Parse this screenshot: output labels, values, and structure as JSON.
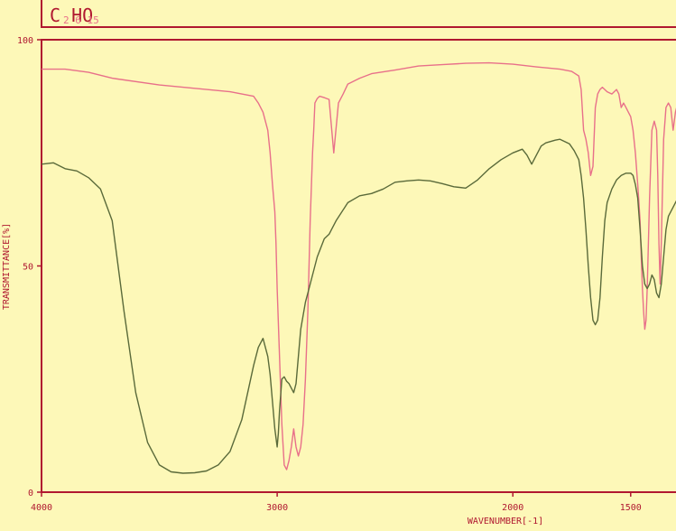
{
  "formula": {
    "main": "C HO",
    "subscripts": "2 6 15"
  },
  "colors": {
    "background": "#fdf8b8",
    "frame": "#b01830",
    "series_top": "#e8708a",
    "series_bottom": "#5a6a3a"
  },
  "chart_data": {
    "type": "line",
    "xlabel": "WAVENUMBER[-1]",
    "ylabel": "TRANSMITTANCE[%]",
    "xlim": [
      4000,
      1300
    ],
    "ylim": [
      0,
      100
    ],
    "x_ticks": [
      4000,
      3000,
      2000,
      1500
    ],
    "x_tick_labels": [
      "4000",
      "3000",
      "2000",
      "1500"
    ],
    "y_ticks": [
      0,
      50,
      100
    ],
    "y_tick_labels": [
      "0",
      "50",
      "100"
    ],
    "grid": false,
    "legend": "none",
    "series": [
      {
        "x": [
          4000,
          3900,
          3800,
          3700,
          3500,
          3300,
          3200,
          3100,
          3080,
          3060,
          3040,
          3030,
          3020,
          3010,
          3005,
          3000,
          2990,
          2980,
          2970,
          2960,
          2950,
          2940,
          2930,
          2920,
          2910,
          2900,
          2890,
          2880,
          2870,
          2860,
          2850,
          2845,
          2840,
          2830,
          2820,
          2800,
          2780,
          2760,
          2740,
          2720,
          2700,
          2650,
          2600,
          2500,
          2400,
          2300,
          2200,
          2100,
          2000,
          1900,
          1800,
          1750,
          1720,
          1710,
          1700,
          1690,
          1680,
          1670,
          1660,
          1650,
          1640,
          1630,
          1620,
          1600,
          1580,
          1560,
          1550,
          1540,
          1530,
          1520,
          1510,
          1500,
          1490,
          1480,
          1470,
          1460,
          1455,
          1450,
          1445,
          1440,
          1435,
          1430,
          1420,
          1410,
          1400,
          1390,
          1385,
          1380,
          1375,
          1370,
          1360,
          1350,
          1340,
          1330,
          1320,
          1310,
          1300
        ],
        "y": [
          93.5,
          93.5,
          92.8,
          91.5,
          90.0,
          89.0,
          88.5,
          87.5,
          86,
          84,
          80,
          75,
          68,
          62,
          55,
          45,
          30,
          15,
          6,
          5,
          7,
          10,
          14,
          10,
          8,
          10,
          15,
          25,
          40,
          60,
          75,
          80,
          86,
          87,
          87.5,
          87.2,
          86.8,
          75,
          86,
          88,
          90.2,
          91.5,
          92.5,
          93.3,
          94.2,
          94.5,
          94.8,
          94.9,
          94.6,
          94.0,
          93.5,
          93,
          92,
          89,
          80,
          78,
          75,
          70,
          72,
          85,
          88,
          89,
          89.5,
          88.5,
          88,
          89,
          88,
          85,
          86,
          85,
          84,
          83,
          80,
          75,
          68,
          60,
          52,
          45,
          40,
          36,
          38,
          45,
          65,
          80,
          82,
          80,
          70,
          55,
          46,
          55,
          78,
          85,
          86,
          85,
          80,
          84,
          86
        ]
      },
      {
        "x": [
          4000,
          3950,
          3900,
          3850,
          3800,
          3750,
          3700,
          3650,
          3600,
          3550,
          3500,
          3450,
          3400,
          3350,
          3300,
          3250,
          3200,
          3150,
          3100,
          3080,
          3060,
          3040,
          3030,
          3020,
          3010,
          3005,
          3000,
          2995,
          2990,
          2980,
          2970,
          2960,
          2950,
          2940,
          2930,
          2920,
          2910,
          2900,
          2890,
          2880,
          2870,
          2860,
          2850,
          2830,
          2800,
          2780,
          2750,
          2700,
          2650,
          2600,
          2550,
          2500,
          2450,
          2400,
          2350,
          2300,
          2250,
          2200,
          2150,
          2100,
          2050,
          2000,
          1960,
          1940,
          1920,
          1900,
          1880,
          1860,
          1840,
          1820,
          1800,
          1780,
          1760,
          1740,
          1720,
          1710,
          1700,
          1690,
          1680,
          1670,
          1660,
          1650,
          1640,
          1630,
          1620,
          1610,
          1600,
          1580,
          1560,
          1540,
          1520,
          1500,
          1490,
          1480,
          1470,
          1460,
          1450,
          1440,
          1430,
          1420,
          1410,
          1400,
          1390,
          1380,
          1370,
          1360,
          1350,
          1340,
          1330,
          1320,
          1310,
          1300
        ],
        "y": [
          72.5,
          72.8,
          71.5,
          71.0,
          69.5,
          67,
          60,
          40,
          22,
          11,
          6,
          4.5,
          4.2,
          4.3,
          4.7,
          6,
          9,
          16,
          28,
          32,
          34,
          30,
          26,
          20,
          14,
          12,
          10,
          13,
          18,
          25,
          25.5,
          24.5,
          24,
          23,
          22,
          24,
          30,
          36,
          39,
          42,
          44,
          46,
          48,
          52,
          56,
          57,
          60,
          64,
          65.5,
          66,
          67,
          68.5,
          68.8,
          69,
          68.8,
          68.2,
          67.5,
          67.2,
          69,
          71.5,
          73.5,
          75,
          75.8,
          74.5,
          72.5,
          74.5,
          76.5,
          77.2,
          77.5,
          77.8,
          78,
          77.5,
          77,
          75.5,
          73.5,
          70,
          65,
          58,
          50,
          43,
          38,
          37,
          38,
          43,
          52,
          60,
          64,
          67,
          69,
          70,
          70.5,
          70.5,
          70,
          68,
          65,
          58,
          50,
          46,
          45,
          46,
          48,
          47,
          44,
          43,
          46,
          52,
          58,
          61,
          62,
          63,
          64,
          65
        ]
      }
    ]
  }
}
